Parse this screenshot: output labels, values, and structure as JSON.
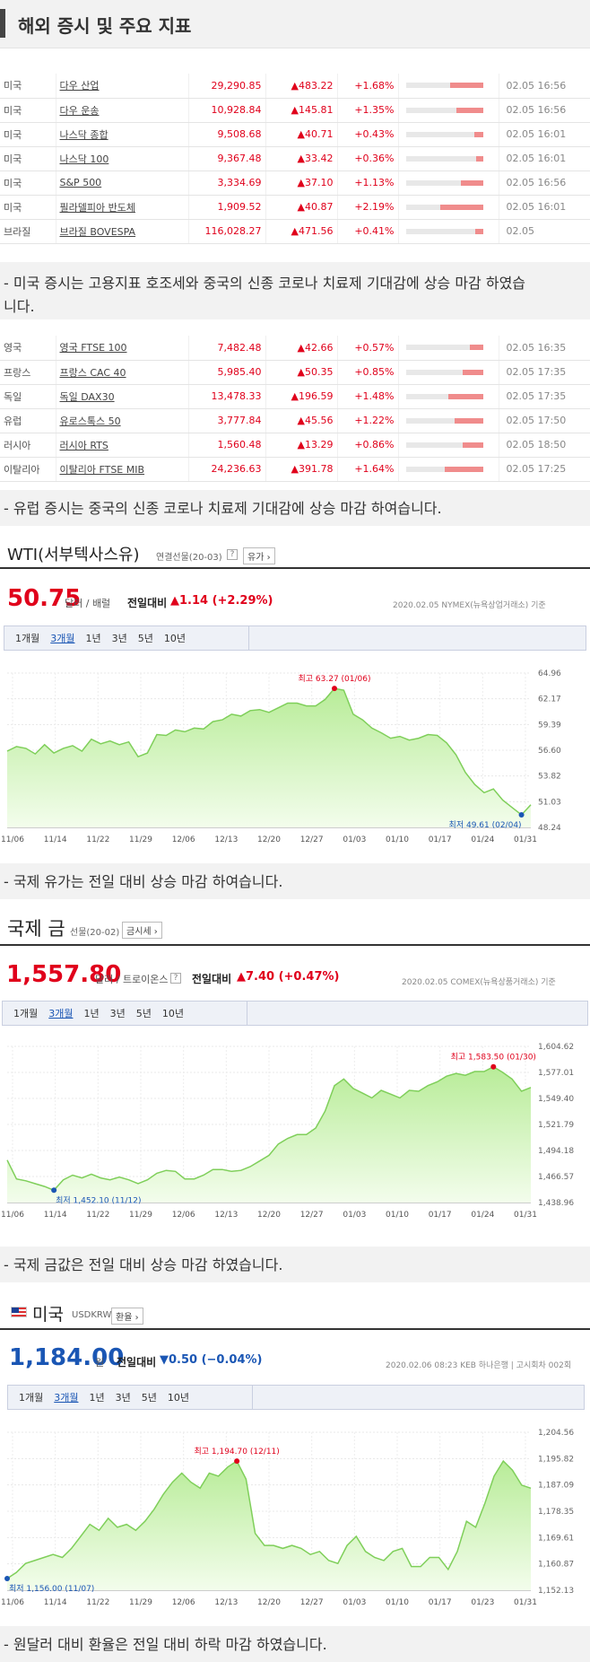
{
  "page_title": "해외 증시 및 주요 지표",
  "us_indices": [
    {
      "country": "미국",
      "name": "다우 산업",
      "value": "29,290.85",
      "change": "▲483.22",
      "pct": "+1.68%",
      "bar": 0.42,
      "time": "02.05 16:56"
    },
    {
      "country": "미국",
      "name": "다우 운송",
      "value": "10,928.84",
      "change": "▲145.81",
      "pct": "+1.35%",
      "bar": 0.34,
      "time": "02.05 16:56"
    },
    {
      "country": "미국",
      "name": "나스닥 종합",
      "value": "9,508.68",
      "change": "▲40.71",
      "pct": "+0.43%",
      "bar": 0.11,
      "time": "02.05 16:01"
    },
    {
      "country": "미국",
      "name": "나스닥 100",
      "value": "9,367.48",
      "change": "▲33.42",
      "pct": "+0.36%",
      "bar": 0.09,
      "time": "02.05 16:01"
    },
    {
      "country": "미국",
      "name": "S&P 500",
      "value": "3,334.69",
      "change": "▲37.10",
      "pct": "+1.13%",
      "bar": 0.28,
      "time": "02.05 16:56"
    },
    {
      "country": "미국",
      "name": "필라델피아 반도체",
      "value": "1,909.52",
      "change": "▲40.87",
      "pct": "+2.19%",
      "bar": 0.55,
      "time": "02.05 16:01"
    },
    {
      "country": "브라질",
      "name": "브라질 BOVESPA",
      "value": "116,028.27",
      "change": "▲471.56",
      "pct": "+0.41%",
      "bar": 0.1,
      "time": "02.05"
    }
  ],
  "note_us": "- 미국 증시는 고용지표 호조세와 중국의 신종 코로나 치료제 기대감에 상승 마감 하였습니다.",
  "eu_indices": [
    {
      "country": "영국",
      "name": "영국 FTSE 100",
      "value": "7,482.48",
      "change": "▲42.66",
      "pct": "+0.57%",
      "bar": 0.17,
      "time": "02.05 16:35"
    },
    {
      "country": "프랑스",
      "name": "프랑스 CAC 40",
      "value": "5,985.40",
      "change": "▲50.35",
      "pct": "+0.85%",
      "bar": 0.26,
      "time": "02.05 17:35"
    },
    {
      "country": "독일",
      "name": "독일 DAX30",
      "value": "13,478.33",
      "change": "▲196.59",
      "pct": "+1.48%",
      "bar": 0.45,
      "time": "02.05 17:35"
    },
    {
      "country": "유럽",
      "name": "유로스톡스 50",
      "value": "3,777.84",
      "change": "▲45.56",
      "pct": "+1.22%",
      "bar": 0.37,
      "time": "02.05 17:50"
    },
    {
      "country": "러시아",
      "name": "러시아 RTS",
      "value": "1,560.48",
      "change": "▲13.29",
      "pct": "+0.86%",
      "bar": 0.26,
      "time": "02.05 18:50"
    },
    {
      "country": "이탈리아",
      "name": "이탈리아 FTSE MIB",
      "value": "24,236.63",
      "change": "▲391.78",
      "pct": "+1.64%",
      "bar": 0.5,
      "time": "02.05 17:25"
    }
  ],
  "note_eu": "- 유럽 증시는 중국의 신종 코로나 치료제 기대감에 상승 마감 하여습니다.",
  "wti": {
    "title": "WTI(서부텍사스유)",
    "sub": "연결선물(20-03)",
    "help": "?",
    "btn": "유가 ›",
    "price": "50.75",
    "unit": "달러 / 배럴",
    "diff_label": "전일대비",
    "diff": "▲1.14 (+2.29%)",
    "source": "2020.02.05 NYMEX(뉴욕상업거래소) 기준",
    "tabs": [
      "1개월",
      "3개월",
      "1년",
      "3년",
      "5년",
      "10년"
    ],
    "active_tab": "3개월",
    "note": "- 국제 유가는 전일 대비 상승 마감 하여습니다."
  },
  "gold": {
    "title": "국제 금",
    "sub": "선물(20-02)",
    "btn": "금시세 ›",
    "price": "1,557.80",
    "unit": "달러 / 트로이온스",
    "help": "?",
    "diff_label": "전일대비",
    "diff": "▲7.40 (+0.47%)",
    "source": "2020.02.05 COMEX(뉴욕상품거래소) 기준",
    "tabs": [
      "1개월",
      "3개월",
      "1년",
      "3년",
      "5년",
      "10년"
    ],
    "active_tab": "3개월",
    "note": "- 국제 금값은 전일 대비 상승 마감 하였습니다."
  },
  "usd": {
    "title": "미국",
    "sub": "USDKRW",
    "btn": "환율 ›",
    "price": "1,184.00",
    "unit": "원",
    "diff_label": "전일대비",
    "diff": "▼0.50 (−0.04%)",
    "source": "2020.02.06 08:23 KEB 하나은행 | 고시회차 002회",
    "tabs": [
      "1개월",
      "3개월",
      "1년",
      "3년",
      "5년",
      "10년"
    ],
    "active_tab": "3개월",
    "note": "- 원달러 대비 환율은 전일 대비 하락 마감 하였습니다."
  },
  "colors": {
    "up": "#e0001b",
    "down": "#1a56b4",
    "area_fill": "#c9f2b0",
    "area_line": "#7fcf5a"
  },
  "chart_data": [
    {
      "type": "area",
      "title": "",
      "xlabel": "",
      "ylabel": "",
      "xticks": [
        "11/06",
        "11/14",
        "11/22",
        "11/29",
        "12/06",
        "12/13",
        "12/20",
        "12/27",
        "01/03",
        "01/10",
        "01/17",
        "01/24",
        "01/31"
      ],
      "yticks": [
        "64.96",
        "62.17",
        "59.39",
        "56.60",
        "53.82",
        "51.03",
        "48.24"
      ],
      "ylim": [
        48.24,
        64.96
      ],
      "values": [
        56.5,
        57.0,
        56.8,
        56.2,
        57.2,
        56.3,
        56.8,
        57.1,
        56.5,
        57.8,
        57.3,
        57.6,
        57.2,
        57.5,
        55.9,
        56.3,
        58.3,
        58.2,
        58.8,
        58.6,
        59.0,
        58.9,
        59.7,
        59.9,
        60.5,
        60.3,
        60.9,
        61.0,
        60.7,
        61.2,
        61.7,
        61.7,
        61.4,
        61.4,
        62.1,
        63.3,
        63.1,
        60.5,
        59.9,
        59.0,
        58.5,
        57.9,
        58.1,
        57.7,
        57.9,
        58.3,
        58.2,
        57.4,
        56.1,
        54.2,
        52.9,
        52.0,
        52.4,
        51.2,
        50.4,
        49.6,
        50.7
      ],
      "annotations": {
        "high": "최고 63.27 (01/06)",
        "low": "최저 49.61 (02/04)"
      }
    },
    {
      "type": "area",
      "title": "",
      "xlabel": "",
      "ylabel": "",
      "xticks": [
        "11/06",
        "11/14",
        "11/22",
        "11/29",
        "12/06",
        "12/13",
        "12/20",
        "12/27",
        "01/03",
        "01/10",
        "01/17",
        "01/24",
        "01/31"
      ],
      "yticks": [
        "1,604.62",
        "1,577.01",
        "1,549.40",
        "1,521.79",
        "1,494.18",
        "1,466.57",
        "1,438.96"
      ],
      "ylim": [
        1438.96,
        1604.62
      ],
      "values": [
        1484,
        1464,
        1462,
        1459,
        1456,
        1452,
        1463,
        1468,
        1465,
        1469,
        1465,
        1463,
        1466,
        1463,
        1459,
        1463,
        1470,
        1473,
        1472,
        1464,
        1464,
        1468,
        1474,
        1474,
        1472,
        1473,
        1477,
        1483,
        1489,
        1501,
        1507,
        1511,
        1511,
        1518,
        1536,
        1563,
        1570,
        1560,
        1555,
        1550,
        1558,
        1554,
        1550,
        1558,
        1557,
        1563,
        1567,
        1573,
        1576,
        1574,
        1578,
        1578,
        1583,
        1577,
        1570,
        1557,
        1561
      ],
      "annotations": {
        "high": "최고 1,583.50 (01/30)",
        "low": "최저 1,452.10 (11/12)"
      }
    },
    {
      "type": "area",
      "title": "",
      "xlabel": "",
      "ylabel": "",
      "xticks": [
        "11/06",
        "11/14",
        "11/22",
        "11/29",
        "12/06",
        "12/13",
        "12/20",
        "12/27",
        "01/03",
        "01/10",
        "01/17",
        "01/23",
        "01/31"
      ],
      "yticks": [
        "1,204.56",
        "1,195.82",
        "1,187.09",
        "1,178.35",
        "1,169.61",
        "1,160.87",
        "1,152.13"
      ],
      "ylim": [
        1152.13,
        1204.56
      ],
      "values": [
        1156,
        1158,
        1161,
        1162,
        1163,
        1164,
        1163,
        1166,
        1170,
        1174,
        1172,
        1176,
        1173,
        1174,
        1172,
        1175,
        1179,
        1184,
        1188,
        1191,
        1188,
        1186,
        1191,
        1190,
        1193,
        1195,
        1189,
        1171,
        1167,
        1167,
        1166,
        1167,
        1166,
        1164,
        1165,
        1162,
        1161,
        1167,
        1170,
        1165,
        1163,
        1162,
        1165,
        1166,
        1160,
        1160,
        1163,
        1163,
        1159,
        1165,
        1175,
        1173,
        1181,
        1190,
        1195,
        1192,
        1187,
        1186
      ],
      "annotations": {
        "high": "최고 1,194.70 (12/11)",
        "low": "최저 1,156.00 (11/07)"
      }
    }
  ]
}
